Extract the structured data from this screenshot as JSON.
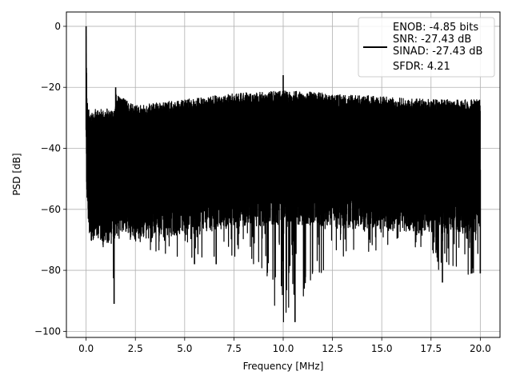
{
  "chart_data": {
    "type": "line",
    "title": "",
    "xlabel": "Frequency [MHz]",
    "ylabel": "PSD [dB]",
    "xlim": [
      -1.0,
      21.0
    ],
    "ylim": [
      -102.0,
      4.7
    ],
    "xticks": [
      0.0,
      2.5,
      5.0,
      7.5,
      10.0,
      12.5,
      15.0,
      17.5,
      20.0
    ],
    "xtick_labels": [
      "0.0",
      "2.5",
      "5.0",
      "7.5",
      "10.0",
      "12.5",
      "15.0",
      "17.5",
      "20.0"
    ],
    "yticks": [
      0,
      -20,
      -40,
      -60,
      -80,
      -100
    ],
    "ytick_labels": [
      "0",
      "−20",
      "−40",
      "−60",
      "−80",
      "−100"
    ],
    "grid": true,
    "line_color": "#000000",
    "legend": {
      "placement": "top-right",
      "entries": [
        "ENOB: -4.85 bits",
        "SNR: -27.43 dB",
        "SINAD: -27.43 dB",
        "SFDR: 4.21"
      ]
    },
    "series": [
      {
        "x": [
          0.0,
          0.05,
          0.1,
          0.2,
          0.5,
          1.0,
          1.45,
          1.5,
          2.5,
          5.0,
          7.5,
          10.0,
          12.5,
          15.0,
          17.5,
          18.1,
          20.0
        ],
        "upper_envelope": [
          0.0,
          -21,
          -25,
          -26,
          -25,
          -25,
          -25.5,
          -20,
          -24,
          -22,
          -20,
          -19,
          -20,
          -21,
          -22,
          -22,
          -22
        ],
        "lower_envelope": [
          -54,
          -60,
          -66,
          -72,
          -73,
          -72,
          -91,
          -69,
          -72,
          -76,
          -75,
          -97,
          -76,
          -73,
          -72,
          -84,
          -80
        ],
        "peaks": [
          {
            "x": 0.0,
            "y": 0.0
          },
          {
            "x": 1.5,
            "y": -20
          },
          {
            "x": 10.0,
            "y": -16
          }
        ],
        "dips": [
          {
            "x": 1.42,
            "y": -91
          },
          {
            "x": 5.5,
            "y": -78
          },
          {
            "x": 6.6,
            "y": -78
          },
          {
            "x": 10.6,
            "y": -97
          },
          {
            "x": 18.08,
            "y": -84
          },
          {
            "x": 20.0,
            "y": -81
          }
        ]
      }
    ]
  }
}
